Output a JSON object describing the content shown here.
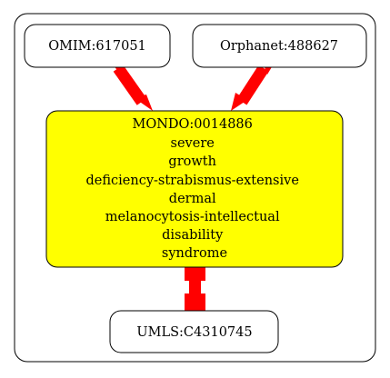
{
  "graph": {
    "nodes": {
      "omim": {
        "label": "OMIM:617051"
      },
      "orphanet": {
        "label": "Orphanet:488627"
      },
      "mondo": {
        "lines": [
          "MONDO:0014886",
          "severe",
          "growth",
          "deficiency-strabismus-extensive",
          "dermal",
          "melanocytosis-intellectual",
          "disability",
          "syndrome"
        ],
        "fill": "#ffff00"
      },
      "umls": {
        "label": "UMLS:C4310745"
      }
    },
    "edge_color": "#ff0000"
  }
}
